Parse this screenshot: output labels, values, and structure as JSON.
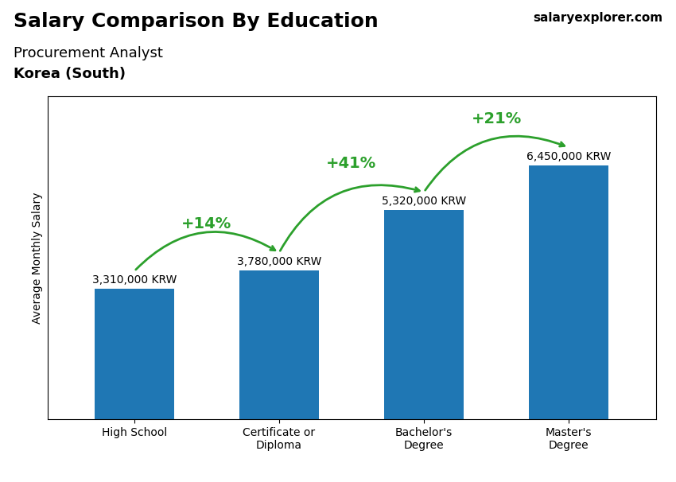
{
  "chart_data": {
    "type": "bar",
    "title": "Salary Comparison By Education",
    "subtitle": "Procurement Analyst",
    "subtitle2": "Korea (South)",
    "watermark": "salaryexplorer.com",
    "ylabel": "Average Monthly Salary",
    "categories": [
      "High School",
      "Certificate or\nDiploma",
      "Bachelor's\nDegree",
      "Master's\nDegree"
    ],
    "values": [
      3310000,
      3780000,
      5320000,
      6450000
    ],
    "value_labels": [
      "3,310,000 KRW",
      "3,780,000 KRW",
      "5,320,000 KRW",
      "6,450,000 KRW"
    ],
    "data_labels": true,
    "annotations": [
      {
        "text": "+14%",
        "from": "High School",
        "to": "Certificate or\nDiploma"
      },
      {
        "text": "+41%",
        "from": "Certificate or\nDiploma",
        "to": "Bachelor's\nDegree"
      },
      {
        "text": "+21%",
        "from": "Bachelor's\nDegree",
        "to": "Master's\nDegree"
      }
    ],
    "ylim": [
      0,
      8200000
    ],
    "tick_labels": "x",
    "grid": false
  }
}
